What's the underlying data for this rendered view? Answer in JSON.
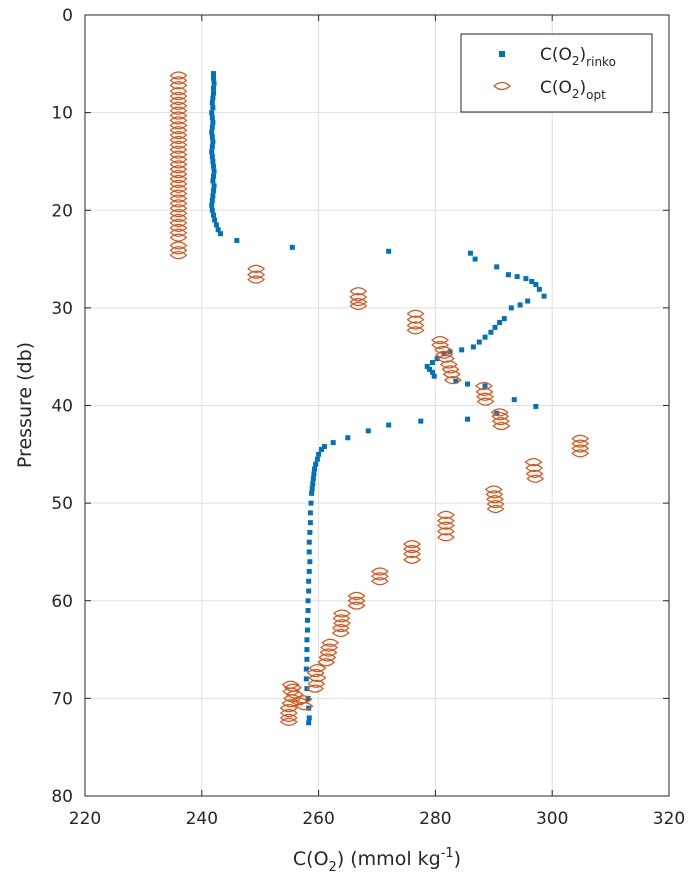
{
  "chart_data": {
    "type": "scatter",
    "xlabel": {
      "main": "C(O",
      "sub": "2",
      "rest": ") (mmol kg",
      "sup": "-1",
      "close": ")"
    },
    "ylabel": "Pressure (db)",
    "xlim": [
      220,
      320
    ],
    "ylim": [
      0,
      80
    ],
    "y_reversed": true,
    "x_ticks": [
      220,
      240,
      260,
      280,
      300,
      320
    ],
    "y_ticks": [
      0,
      10,
      20,
      30,
      40,
      50,
      60,
      70,
      80
    ],
    "grid": true,
    "legend_position": "top-right",
    "series": [
      {
        "legend": {
          "main": "C(O",
          "sub": "2",
          "close": ")",
          "subscript": "rinko"
        },
        "marker": "square",
        "color": "#0072BD",
        "points": [
          [
            242.0,
            6.0
          ],
          [
            242.0,
            6.5
          ],
          [
            242.1,
            7.0
          ],
          [
            242.0,
            7.5
          ],
          [
            242.0,
            8.0
          ],
          [
            241.9,
            8.5
          ],
          [
            241.8,
            9.0
          ],
          [
            241.9,
            9.5
          ],
          [
            241.7,
            10.0
          ],
          [
            241.8,
            10.5
          ],
          [
            241.9,
            11.0
          ],
          [
            241.8,
            11.5
          ],
          [
            241.7,
            12.0
          ],
          [
            241.8,
            12.5
          ],
          [
            241.9,
            13.0
          ],
          [
            241.8,
            13.5
          ],
          [
            241.7,
            14.0
          ],
          [
            241.8,
            14.5
          ],
          [
            241.9,
            15.0
          ],
          [
            242.0,
            15.5
          ],
          [
            242.1,
            16.0
          ],
          [
            242.0,
            16.5
          ],
          [
            241.9,
            17.0
          ],
          [
            242.1,
            17.5
          ],
          [
            242.0,
            18.0
          ],
          [
            241.9,
            18.5
          ],
          [
            241.8,
            19.0
          ],
          [
            241.7,
            19.5
          ],
          [
            241.8,
            20.0
          ],
          [
            242.0,
            20.5
          ],
          [
            242.2,
            21.0
          ],
          [
            242.5,
            21.5
          ],
          [
            242.8,
            22.0
          ],
          [
            243.2,
            22.4
          ],
          [
            246.0,
            23.1
          ],
          [
            255.5,
            23.8
          ],
          [
            272.0,
            24.2
          ],
          [
            286.0,
            24.4
          ],
          [
            286.8,
            25.0
          ],
          [
            290.5,
            25.8
          ],
          [
            292.5,
            26.6
          ],
          [
            294.0,
            26.8
          ],
          [
            295.5,
            27.0
          ],
          [
            296.5,
            27.3
          ],
          [
            297.2,
            27.6
          ],
          [
            297.8,
            28.1
          ],
          [
            298.6,
            28.8
          ],
          [
            295.8,
            29.3
          ],
          [
            294.5,
            29.7
          ],
          [
            293.0,
            30.0
          ],
          [
            291.8,
            31.1
          ],
          [
            291.0,
            31.5
          ],
          [
            290.2,
            32.0
          ],
          [
            289.5,
            32.5
          ],
          [
            288.5,
            33.0
          ],
          [
            287.5,
            33.5
          ],
          [
            286.5,
            34.0
          ],
          [
            284.5,
            34.3
          ],
          [
            282.5,
            34.5
          ],
          [
            281.5,
            34.7
          ],
          [
            280.3,
            35.2
          ],
          [
            279.5,
            35.6
          ],
          [
            278.6,
            36.0
          ],
          [
            279.0,
            36.3
          ],
          [
            279.5,
            36.6
          ],
          [
            279.8,
            37.0
          ],
          [
            283.5,
            37.5
          ],
          [
            285.5,
            37.8
          ],
          [
            288.5,
            38.0
          ],
          [
            293.5,
            39.4
          ],
          [
            297.2,
            40.1
          ],
          [
            290.5,
            40.8
          ],
          [
            285.5,
            41.4
          ],
          [
            277.5,
            41.6
          ],
          [
            272.0,
            42.0
          ],
          [
            268.5,
            42.6
          ],
          [
            265.0,
            43.3
          ],
          [
            262.5,
            43.8
          ],
          [
            261.0,
            44.2
          ],
          [
            260.5,
            44.5
          ],
          [
            260.0,
            45.0
          ],
          [
            259.8,
            45.5
          ],
          [
            259.5,
            46.0
          ],
          [
            259.3,
            46.5
          ],
          [
            259.2,
            47.0
          ],
          [
            259.1,
            47.5
          ],
          [
            259.0,
            48.0
          ],
          [
            258.9,
            48.5
          ],
          [
            258.8,
            49.0
          ],
          [
            258.7,
            50.0
          ],
          [
            258.6,
            51.0
          ],
          [
            258.6,
            52.0
          ],
          [
            258.5,
            53.0
          ],
          [
            258.4,
            54.0
          ],
          [
            258.4,
            55.0
          ],
          [
            258.5,
            56.0
          ],
          [
            258.4,
            57.0
          ],
          [
            258.3,
            58.0
          ],
          [
            258.3,
            59.0
          ],
          [
            258.2,
            60.0
          ],
          [
            258.2,
            61.0
          ],
          [
            258.1,
            62.0
          ],
          [
            258.1,
            63.0
          ],
          [
            258.0,
            64.0
          ],
          [
            258.0,
            65.0
          ],
          [
            258.0,
            66.0
          ],
          [
            257.9,
            67.0
          ],
          [
            257.9,
            68.0
          ],
          [
            258.0,
            69.0
          ],
          [
            258.2,
            70.0
          ],
          [
            258.3,
            71.0
          ],
          [
            258.4,
            72.0
          ],
          [
            258.3,
            72.5
          ]
        ]
      },
      {
        "legend": {
          "main": "C(O",
          "sub": "2",
          "close": ")",
          "subscript": "opt"
        },
        "marker": "diamond",
        "color": "#D95319",
        "points": [
          [
            236.0,
            6.2
          ],
          [
            236.0,
            6.7
          ],
          [
            236.0,
            7.2
          ],
          [
            236.0,
            7.8
          ],
          [
            236.0,
            8.3
          ],
          [
            236.0,
            8.8
          ],
          [
            236.0,
            9.3
          ],
          [
            236.0,
            9.8
          ],
          [
            236.0,
            10.3
          ],
          [
            236.0,
            10.8
          ],
          [
            236.0,
            11.3
          ],
          [
            236.0,
            11.8
          ],
          [
            236.0,
            12.3
          ],
          [
            236.0,
            12.8
          ],
          [
            236.0,
            13.3
          ],
          [
            236.0,
            13.8
          ],
          [
            236.0,
            14.3
          ],
          [
            236.0,
            14.8
          ],
          [
            236.0,
            15.3
          ],
          [
            236.0,
            15.8
          ],
          [
            236.0,
            16.3
          ],
          [
            236.0,
            16.8
          ],
          [
            236.0,
            17.3
          ],
          [
            236.0,
            17.8
          ],
          [
            236.0,
            18.3
          ],
          [
            236.0,
            18.8
          ],
          [
            236.0,
            19.3
          ],
          [
            236.0,
            19.8
          ],
          [
            236.0,
            20.3
          ],
          [
            236.0,
            20.8
          ],
          [
            236.0,
            21.3
          ],
          [
            236.0,
            21.8
          ],
          [
            236.0,
            22.3
          ],
          [
            236.0,
            22.8
          ],
          [
            236.0,
            23.6
          ],
          [
            236.0,
            24.1
          ],
          [
            236.0,
            24.6
          ],
          [
            249.3,
            26.0
          ],
          [
            249.3,
            26.6
          ],
          [
            249.3,
            27.1
          ],
          [
            266.8,
            28.3
          ],
          [
            266.8,
            28.9
          ],
          [
            266.8,
            29.4
          ],
          [
            266.8,
            29.8
          ],
          [
            276.6,
            30.6
          ],
          [
            276.6,
            31.2
          ],
          [
            276.6,
            31.8
          ],
          [
            276.6,
            32.3
          ],
          [
            280.8,
            33.3
          ],
          [
            280.8,
            33.8
          ],
          [
            281.3,
            34.3
          ],
          [
            281.5,
            34.8
          ],
          [
            281.8,
            35.2
          ],
          [
            282.3,
            35.8
          ],
          [
            282.6,
            36.3
          ],
          [
            282.8,
            36.8
          ],
          [
            283.0,
            37.4
          ],
          [
            288.3,
            38.0
          ],
          [
            288.4,
            38.6
          ],
          [
            288.5,
            39.1
          ],
          [
            288.6,
            39.6
          ],
          [
            291.0,
            40.7
          ],
          [
            291.1,
            41.1
          ],
          [
            291.2,
            41.6
          ],
          [
            291.3,
            42.1
          ],
          [
            304.8,
            43.4
          ],
          [
            304.8,
            43.9
          ],
          [
            304.8,
            44.4
          ],
          [
            304.8,
            44.9
          ],
          [
            296.8,
            45.8
          ],
          [
            296.9,
            46.4
          ],
          [
            297.0,
            47.0
          ],
          [
            297.1,
            47.5
          ],
          [
            290.0,
            48.6
          ],
          [
            290.1,
            49.1
          ],
          [
            290.2,
            49.6
          ],
          [
            290.3,
            50.1
          ],
          [
            290.3,
            50.6
          ],
          [
            281.8,
            51.2
          ],
          [
            281.8,
            51.8
          ],
          [
            281.8,
            52.3
          ],
          [
            281.8,
            52.9
          ],
          [
            281.8,
            53.5
          ],
          [
            276.0,
            54.2
          ],
          [
            276.0,
            54.7
          ],
          [
            276.0,
            55.2
          ],
          [
            276.0,
            55.8
          ],
          [
            270.5,
            57.0
          ],
          [
            270.5,
            57.5
          ],
          [
            270.5,
            58.0
          ],
          [
            266.5,
            59.5
          ],
          [
            266.5,
            60.0
          ],
          [
            266.5,
            60.5
          ],
          [
            264.0,
            61.3
          ],
          [
            263.9,
            61.8
          ],
          [
            264.0,
            62.3
          ],
          [
            263.8,
            62.8
          ],
          [
            263.8,
            63.3
          ],
          [
            262.0,
            64.3
          ],
          [
            261.8,
            64.8
          ],
          [
            261.7,
            65.3
          ],
          [
            261.5,
            65.8
          ],
          [
            261.3,
            66.3
          ],
          [
            259.8,
            66.9
          ],
          [
            259.5,
            67.4
          ],
          [
            259.8,
            67.9
          ],
          [
            259.6,
            68.5
          ],
          [
            259.4,
            69.0
          ],
          [
            255.2,
            68.6
          ],
          [
            255.6,
            68.9
          ],
          [
            255.3,
            69.3
          ],
          [
            255.9,
            69.6
          ],
          [
            255.5,
            70.0
          ],
          [
            256.6,
            70.3
          ],
          [
            255.2,
            70.5
          ],
          [
            257.4,
            70.1
          ],
          [
            254.9,
            71.0
          ],
          [
            257.6,
            70.8
          ],
          [
            254.9,
            71.5
          ],
          [
            254.9,
            72.0
          ],
          [
            254.9,
            72.4
          ]
        ]
      }
    ]
  }
}
